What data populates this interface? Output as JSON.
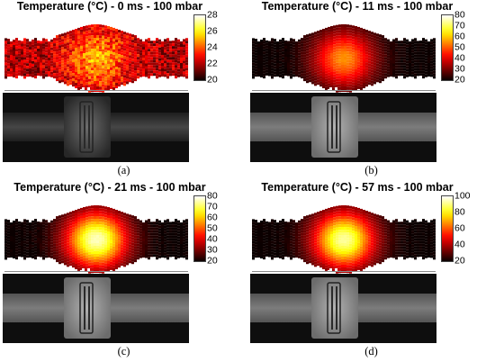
{
  "chart_data": [
    {
      "type": "heatmap",
      "title": "Temperature (°C) - 0 ms - 100 mbar",
      "caption": "(a)",
      "colorbar": {
        "range": [
          20,
          28
        ],
        "ticks": [
          20,
          22,
          24,
          26,
          28
        ],
        "colormap": "hot"
      },
      "peak_value": 25,
      "ambient_value": 22
    },
    {
      "type": "heatmap",
      "title": "Temperature (°C) - 11 ms - 100 mbar",
      "caption": "(b)",
      "colorbar": {
        "range": [
          20,
          80
        ],
        "ticks": [
          20,
          30,
          40,
          50,
          60,
          70,
          80
        ],
        "colormap": "hot"
      },
      "peak_value": 55,
      "ambient_value": 20
    },
    {
      "type": "heatmap",
      "title": "Temperature (°C) - 21 ms - 100 mbar",
      "caption": "(c)",
      "colorbar": {
        "range": [
          20,
          80
        ],
        "ticks": [
          20,
          30,
          40,
          50,
          60,
          70,
          80
        ],
        "colormap": "hot"
      },
      "peak_value": 76,
      "ambient_value": 20
    },
    {
      "type": "heatmap",
      "title": "Temperature (°C) - 57 ms - 100 mbar",
      "caption": "(d)",
      "colorbar": {
        "range": [
          20,
          100
        ],
        "ticks": [
          20,
          40,
          60,
          80,
          100
        ],
        "colormap": "hot"
      },
      "peak_value": 92,
      "ambient_value": 20
    }
  ],
  "colors": {
    "background": "#ffffff",
    "photo_background": "#0e0e0e"
  }
}
